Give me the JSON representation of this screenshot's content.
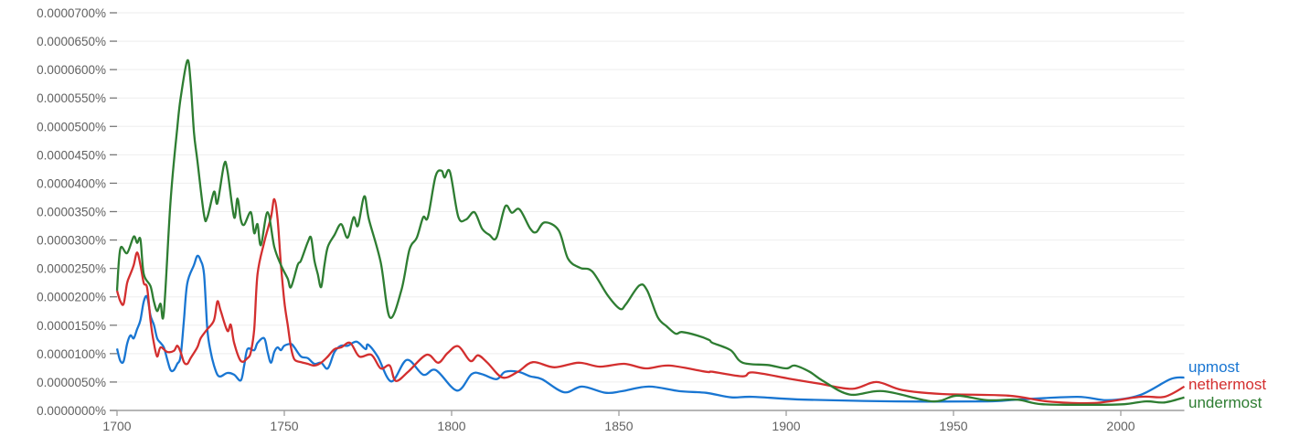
{
  "chart_data": {
    "type": "line",
    "xlim": [
      1700,
      2019
    ],
    "ylim": [
      0,
      7e-05
    ],
    "grid": true,
    "legend_placement": "right, at line ends",
    "x_ticks": [
      1700,
      1750,
      1800,
      1850,
      1900,
      1950,
      2000
    ],
    "x_tick_labels": [
      "1700",
      "1750",
      "1800",
      "1850",
      "1900",
      "1950",
      "2000"
    ],
    "y_ticks": [
      0,
      5e-06,
      1e-05,
      1.5e-05,
      2e-05,
      2.5e-05,
      3e-05,
      3.5e-05,
      4e-05,
      4.5e-05,
      5e-05,
      5.5e-05,
      6e-05,
      6.5e-05,
      7e-05
    ],
    "y_tick_labels": [
      "0.0000000%",
      "0.0000050%",
      "0.0000100%",
      "0.0000150%",
      "0.0000200%",
      "0.0000250%",
      "0.0000300%",
      "0.0000350%",
      "0.0000400%",
      "0.0000450%",
      "0.0000500%",
      "0.0000550%",
      "0.0000600%",
      "0.0000650%",
      "0.0000700%"
    ],
    "series": [
      {
        "name": "upmost",
        "color": "#1976d2",
        "points": [
          [
            1700,
            1.09e-05
          ],
          [
            1701,
            8.7e-06
          ],
          [
            1702,
            8.7e-06
          ],
          [
            1703,
            1.17e-05
          ],
          [
            1704,
            1.32e-05
          ],
          [
            1705,
            1.27e-05
          ],
          [
            1706,
            1.43e-05
          ],
          [
            1707,
            1.59e-05
          ],
          [
            1708,
            1.92e-05
          ],
          [
            1709,
            2e-05
          ],
          [
            1710,
            1.67e-05
          ],
          [
            1711,
            1.51e-05
          ],
          [
            1712,
            1.27e-05
          ],
          [
            1713,
            1.19e-05
          ],
          [
            1714,
            1.11e-05
          ],
          [
            1715,
            9e-06
          ],
          [
            1716,
            7.1e-06
          ],
          [
            1717,
            7.1e-06
          ],
          [
            1718,
            8.2e-06
          ],
          [
            1719,
            9.5e-06
          ],
          [
            1720,
            1.59e-05
          ],
          [
            1721,
            2.24e-05
          ],
          [
            1723,
            2.56e-05
          ],
          [
            1724,
            2.72e-05
          ],
          [
            1725,
            2.64e-05
          ],
          [
            1726,
            2.4e-05
          ],
          [
            1727,
            1.43e-05
          ],
          [
            1728,
            1.03e-05
          ],
          [
            1729,
            7.9e-06
          ],
          [
            1730,
            6.3e-06
          ],
          [
            1731,
            6e-06
          ],
          [
            1733,
            6.6e-06
          ],
          [
            1735,
            6.3e-06
          ],
          [
            1737,
            5.3e-06
          ],
          [
            1738,
            7.9e-06
          ],
          [
            1739,
            1.08e-05
          ],
          [
            1741,
            1.06e-05
          ],
          [
            1742,
            1.19e-05
          ],
          [
            1744,
            1.27e-05
          ],
          [
            1745,
            1.03e-05
          ],
          [
            1746,
            8.4e-06
          ],
          [
            1747,
            1.03e-05
          ],
          [
            1748,
            1.11e-05
          ],
          [
            1749,
            1.06e-05
          ],
          [
            1750,
            1.14e-05
          ],
          [
            1752,
            1.17e-05
          ],
          [
            1753,
            1.11e-05
          ],
          [
            1755,
            9.5e-06
          ],
          [
            1757,
            9.2e-06
          ],
          [
            1759,
            8.2e-06
          ],
          [
            1761,
            8.4e-06
          ],
          [
            1763,
            7.4e-06
          ],
          [
            1765,
            1.03e-05
          ],
          [
            1767,
            1.14e-05
          ],
          [
            1769,
            1.14e-05
          ],
          [
            1771.6,
            1.21e-05
          ],
          [
            1774.3,
            1.08e-05
          ],
          [
            1775,
            1.16e-05
          ],
          [
            1777.9,
            9.5e-06
          ],
          [
            1782,
            5.1e-06
          ],
          [
            1786.6,
            8.9e-06
          ],
          [
            1791.5,
            6.3e-06
          ],
          [
            1795.3,
            7.1e-06
          ],
          [
            1801.6,
            3.5e-06
          ],
          [
            1806,
            6.4e-06
          ],
          [
            1809,
            6.4e-06
          ],
          [
            1813.4,
            5.5e-06
          ],
          [
            1816,
            6.8e-06
          ],
          [
            1820,
            6.8e-06
          ],
          [
            1823.5,
            6e-06
          ],
          [
            1827,
            5.5e-06
          ],
          [
            1833.6,
            3.2e-06
          ],
          [
            1839,
            4.2e-06
          ],
          [
            1846,
            3.1e-06
          ],
          [
            1851,
            3.4e-06
          ],
          [
            1859,
            4.2e-06
          ],
          [
            1868,
            3.4e-06
          ],
          [
            1876,
            3.1e-06
          ],
          [
            1883.6,
            2.3e-06
          ],
          [
            1890,
            2.4e-06
          ],
          [
            1905.5,
            1.9e-06
          ],
          [
            1932.8,
            1.6e-06
          ],
          [
            1960,
            1.6e-06
          ],
          [
            1969,
            1.9e-06
          ],
          [
            1987,
            2.4e-06
          ],
          [
            1996,
            1.8e-06
          ],
          [
            2005.7,
            2.7e-06
          ],
          [
            2014.8,
            5.5e-06
          ],
          [
            2019,
            5.8e-06
          ]
        ]
      },
      {
        "name": "nethermost",
        "color": "#d32f2f",
        "points": [
          [
            1700,
            2.11e-05
          ],
          [
            1701,
            1.92e-05
          ],
          [
            1702,
            1.88e-05
          ],
          [
            1703,
            2.24e-05
          ],
          [
            1704,
            2.4e-05
          ],
          [
            1705,
            2.56e-05
          ],
          [
            1706,
            2.78e-05
          ],
          [
            1707,
            2.56e-05
          ],
          [
            1708,
            2.24e-05
          ],
          [
            1709,
            2.16e-05
          ],
          [
            1710,
            1.59e-05
          ],
          [
            1711,
            1.19e-05
          ],
          [
            1712,
            9.5e-06
          ],
          [
            1713,
            1.11e-05
          ],
          [
            1715,
            1.03e-05
          ],
          [
            1717,
            1.05e-05
          ],
          [
            1718,
            1.14e-05
          ],
          [
            1719,
            1.03e-05
          ],
          [
            1720,
            8.5e-06
          ],
          [
            1721,
            8.2e-06
          ],
          [
            1722,
            9.2e-06
          ],
          [
            1724,
            1.11e-05
          ],
          [
            1725,
            1.27e-05
          ],
          [
            1727,
            1.43e-05
          ],
          [
            1729,
            1.59e-05
          ],
          [
            1730,
            1.92e-05
          ],
          [
            1731,
            1.75e-05
          ],
          [
            1733,
            1.4e-05
          ],
          [
            1734,
            1.51e-05
          ],
          [
            1735,
            1.19e-05
          ],
          [
            1737,
            8.7e-06
          ],
          [
            1739,
            9.2e-06
          ],
          [
            1740,
            1.03e-05
          ],
          [
            1741,
            1.43e-05
          ],
          [
            1742,
            2.4e-05
          ],
          [
            1744,
            2.96e-05
          ],
          [
            1746,
            3.4e-05
          ],
          [
            1747,
            3.72e-05
          ],
          [
            1748,
            3.36e-05
          ],
          [
            1749,
            2.56e-05
          ],
          [
            1750,
            1.92e-05
          ],
          [
            1751,
            1.51e-05
          ],
          [
            1752,
            1.11e-05
          ],
          [
            1753,
            9e-06
          ],
          [
            1755,
            8.5e-06
          ],
          [
            1757,
            8.2e-06
          ],
          [
            1759,
            7.9e-06
          ],
          [
            1761,
            8.4e-06
          ],
          [
            1763,
            9.5e-06
          ],
          [
            1765,
            1.08e-05
          ],
          [
            1767,
            1.11e-05
          ],
          [
            1769.7,
            1.19e-05
          ],
          [
            1772.4,
            9.5e-06
          ],
          [
            1776,
            9.8e-06
          ],
          [
            1778.8,
            7.4e-06
          ],
          [
            1781.5,
            7.9e-06
          ],
          [
            1783.3,
            5.2e-06
          ],
          [
            1787,
            6.8e-06
          ],
          [
            1792.5,
            9.8e-06
          ],
          [
            1796,
            8.4e-06
          ],
          [
            1798.8,
            1.01e-05
          ],
          [
            1802,
            1.13e-05
          ],
          [
            1805.6,
            8.7e-06
          ],
          [
            1807.9,
            9.7e-06
          ],
          [
            1810.7,
            8.4e-06
          ],
          [
            1815.2,
            5.8e-06
          ],
          [
            1819.8,
            6.8e-06
          ],
          [
            1824.3,
            8.5e-06
          ],
          [
            1830.7,
            7.6e-06
          ],
          [
            1838,
            8.4e-06
          ],
          [
            1844.3,
            7.7e-06
          ],
          [
            1851.6,
            8.2e-06
          ],
          [
            1858,
            7.4e-06
          ],
          [
            1865,
            7.9e-06
          ],
          [
            1876,
            6.8e-06
          ],
          [
            1878,
            6.8e-06
          ],
          [
            1887,
            6e-06
          ],
          [
            1890,
            6.7e-06
          ],
          [
            1900.8,
            5.6e-06
          ],
          [
            1910,
            4.7e-06
          ],
          [
            1919.7,
            3.8e-06
          ],
          [
            1927,
            5e-06
          ],
          [
            1934.6,
            3.6e-06
          ],
          [
            1946.4,
            2.9e-06
          ],
          [
            1966.4,
            2.6e-06
          ],
          [
            1978,
            1.6e-06
          ],
          [
            1992,
            1.3e-06
          ],
          [
            2005.7,
            2.4e-06
          ],
          [
            2013,
            2.4e-06
          ],
          [
            2019,
            4.2e-06
          ]
        ]
      },
      {
        "name": "undermost",
        "color": "#2e7d32",
        "points": [
          [
            1700,
            2.11e-05
          ],
          [
            1701,
            2.85e-05
          ],
          [
            1703,
            2.77e-05
          ],
          [
            1705,
            3.06e-05
          ],
          [
            1706,
            2.95e-05
          ],
          [
            1707,
            3.01e-05
          ],
          [
            1708,
            2.4e-05
          ],
          [
            1710,
            2.19e-05
          ],
          [
            1711,
            1.92e-05
          ],
          [
            1712,
            1.75e-05
          ],
          [
            1713,
            1.88e-05
          ],
          [
            1714,
            1.72e-05
          ],
          [
            1716,
            3.69e-05
          ],
          [
            1718,
            4.97e-05
          ],
          [
            1719,
            5.49e-05
          ],
          [
            1721,
            6.16e-05
          ],
          [
            1722,
            5.78e-05
          ],
          [
            1723,
            4.89e-05
          ],
          [
            1724,
            4.41e-05
          ],
          [
            1726,
            3.44e-05
          ],
          [
            1727,
            3.4e-05
          ],
          [
            1729,
            3.85e-05
          ],
          [
            1730,
            3.65e-05
          ],
          [
            1732,
            4.33e-05
          ],
          [
            1733,
            4.22e-05
          ],
          [
            1735,
            3.4e-05
          ],
          [
            1736,
            3.73e-05
          ],
          [
            1737,
            3.36e-05
          ],
          [
            1738,
            3.27e-05
          ],
          [
            1740,
            3.49e-05
          ],
          [
            1741,
            3.12e-05
          ],
          [
            1742,
            3.28e-05
          ],
          [
            1743,
            2.91e-05
          ],
          [
            1745,
            3.49e-05
          ],
          [
            1747,
            2.88e-05
          ],
          [
            1749,
            2.56e-05
          ],
          [
            1751,
            2.32e-05
          ],
          [
            1752,
            2.17e-05
          ],
          [
            1754,
            2.56e-05
          ],
          [
            1755,
            2.64e-05
          ],
          [
            1757,
            2.96e-05
          ],
          [
            1758,
            3.04e-05
          ],
          [
            1759,
            2.64e-05
          ],
          [
            1760,
            2.4e-05
          ],
          [
            1761,
            2.17e-05
          ],
          [
            1762,
            2.56e-05
          ],
          [
            1763,
            2.88e-05
          ],
          [
            1765,
            3.09e-05
          ],
          [
            1767,
            3.28e-05
          ],
          [
            1768.9,
            3.04e-05
          ],
          [
            1770.7,
            3.4e-05
          ],
          [
            1772,
            3.25e-05
          ],
          [
            1773.9,
            3.77e-05
          ],
          [
            1775.3,
            3.36e-05
          ],
          [
            1778.8,
            2.61e-05
          ],
          [
            1781.5,
            1.64e-05
          ],
          [
            1785,
            2.12e-05
          ],
          [
            1787.4,
            2.83e-05
          ],
          [
            1789.6,
            3.04e-05
          ],
          [
            1791.5,
            3.4e-05
          ],
          [
            1792.9,
            3.4e-05
          ],
          [
            1795.2,
            4.12e-05
          ],
          [
            1797,
            4.22e-05
          ],
          [
            1797.9,
            4.1e-05
          ],
          [
            1799.5,
            4.2e-05
          ],
          [
            1802,
            3.41e-05
          ],
          [
            1804.3,
            3.36e-05
          ],
          [
            1806.8,
            3.49e-05
          ],
          [
            1809.1,
            3.2e-05
          ],
          [
            1811.3,
            3.09e-05
          ],
          [
            1813.4,
            3.04e-05
          ],
          [
            1816,
            3.59e-05
          ],
          [
            1818,
            3.48e-05
          ],
          [
            1820.3,
            3.54e-05
          ],
          [
            1823.5,
            3.2e-05
          ],
          [
            1825.3,
            3.14e-05
          ],
          [
            1827.8,
            3.31e-05
          ],
          [
            1832,
            3.17e-05
          ],
          [
            1834.8,
            2.67e-05
          ],
          [
            1838.4,
            2.51e-05
          ],
          [
            1842,
            2.45e-05
          ],
          [
            1846.6,
            2.03e-05
          ],
          [
            1850.3,
            1.79e-05
          ],
          [
            1852.1,
            1.87e-05
          ],
          [
            1856.1,
            2.2e-05
          ],
          [
            1858.4,
            2.12e-05
          ],
          [
            1861.6,
            1.64e-05
          ],
          [
            1864.3,
            1.48e-05
          ],
          [
            1867,
            1.35e-05
          ],
          [
            1868.8,
            1.38e-05
          ],
          [
            1873.4,
            1.32e-05
          ],
          [
            1877,
            1.24e-05
          ],
          [
            1878,
            1.19e-05
          ],
          [
            1883.4,
            1.06e-05
          ],
          [
            1887,
            8.4e-06
          ],
          [
            1894.5,
            8e-06
          ],
          [
            1900,
            7.4e-06
          ],
          [
            1902.5,
            7.9e-06
          ],
          [
            1907,
            6.8e-06
          ],
          [
            1911,
            5.2e-06
          ],
          [
            1919,
            2.8e-06
          ],
          [
            1929,
            3.4e-06
          ],
          [
            1943.7,
            1.6e-06
          ],
          [
            1951,
            2.6e-06
          ],
          [
            1960,
            1.8e-06
          ],
          [
            1969,
            1.9e-06
          ],
          [
            1976.5,
            1.1e-06
          ],
          [
            1992,
            1e-06
          ],
          [
            2001,
            1.1e-06
          ],
          [
            2007.5,
            1.6e-06
          ],
          [
            2013,
            1.4e-06
          ],
          [
            2019,
            2.3e-06
          ]
        ]
      }
    ]
  }
}
